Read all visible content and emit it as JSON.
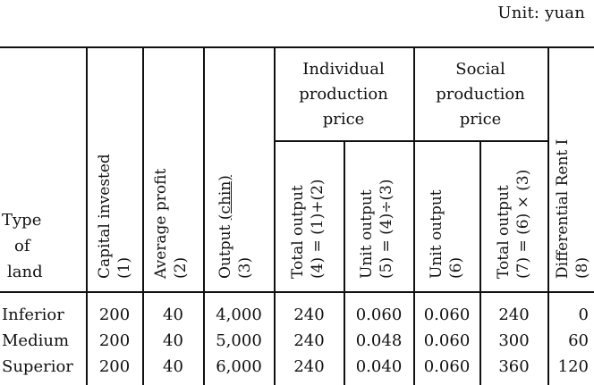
{
  "unit_label": "Unit: yuan",
  "headers": {
    "type_of_land": [
      "Type",
      "of",
      "land"
    ],
    "capital_invested": {
      "text": "Capital invested",
      "number": "(1)"
    },
    "average_profit": {
      "text": "Average profit",
      "number": "(2)"
    },
    "output": {
      "text": "Output",
      "unit": "(chin)",
      "number": "(3)"
    },
    "individual_production_price": {
      "title_lines": [
        "Individual",
        "production",
        "price"
      ],
      "total_output": {
        "text": "Total output",
        "formula": "(4) = (1)+(2)"
      },
      "unit_output": {
        "text": "Unit output",
        "formula": "(5) = (4)÷(3)"
      }
    },
    "social_production_price": {
      "title_lines": [
        "Social",
        "production",
        "price"
      ],
      "unit_output": {
        "text": "Unit output",
        "number": "(6)"
      },
      "total_output": {
        "text": "Total output",
        "formula": "(7) = (6) × (3)"
      }
    },
    "differential_rent": {
      "text": "Differential Rent I",
      "number": "(8)"
    }
  },
  "rows": [
    {
      "type": "Inferior",
      "capital_invested": "200",
      "average_profit": "40",
      "output": "4,000",
      "individual_total_output": "240",
      "individual_unit_output": "0.060",
      "social_unit_output": "0.060",
      "social_total_output": "240",
      "differential_rent": "0"
    },
    {
      "type": "Medium",
      "capital_invested": "200",
      "average_profit": "40",
      "output": "5,000",
      "individual_total_output": "240",
      "individual_unit_output": "0.048",
      "social_unit_output": "0.060",
      "social_total_output": "300",
      "differential_rent": "60"
    },
    {
      "type": "Superior",
      "capital_invested": "200",
      "average_profit": "40",
      "output": "6,000",
      "individual_total_output": "240",
      "individual_unit_output": "0.040",
      "social_unit_output": "0.060",
      "social_total_output": "360",
      "differential_rent": "120"
    }
  ]
}
